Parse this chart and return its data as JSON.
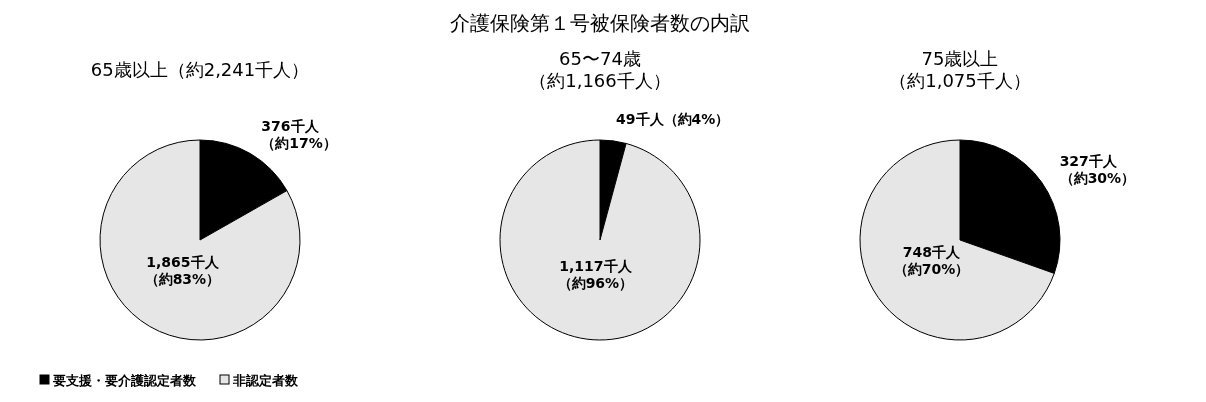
{
  "chart_data": [
    {
      "type": "pie",
      "subtitle": "65歳以上（約2,241千人）",
      "categories": [
        "要支援・要介護認定者数",
        "非認定者数"
      ],
      "values": [
        376,
        1865
      ],
      "colors": [
        "#000000",
        "#e6e6e6"
      ],
      "value_labels": [
        "376千人（約17%）",
        "1,865千人（約83%）"
      ],
      "legend": "bottom left"
    },
    {
      "type": "pie",
      "title": "介護保険第１号被保険者数の内訳",
      "subtitle": "65〜74歳（約1,166千人）",
      "categories": [
        null,
        null
      ],
      "values": [
        49,
        1117
      ],
      "colors": [
        "#000000",
        "#e6e6e6"
      ],
      "value_labels": [
        "49千人（約4%）",
        "1,117千人（約96%）"
      ]
    },
    {
      "type": "pie",
      "subtitle": "75歳以上（約1,075千人）",
      "categories": [
        null,
        null
      ],
      "values": [
        327,
        748
      ],
      "colors": [
        "#000000",
        "#e6e6e6"
      ],
      "value_labels": [
        "327千人（約30%）",
        "748千人（約70%）"
      ]
    }
  ]
}
